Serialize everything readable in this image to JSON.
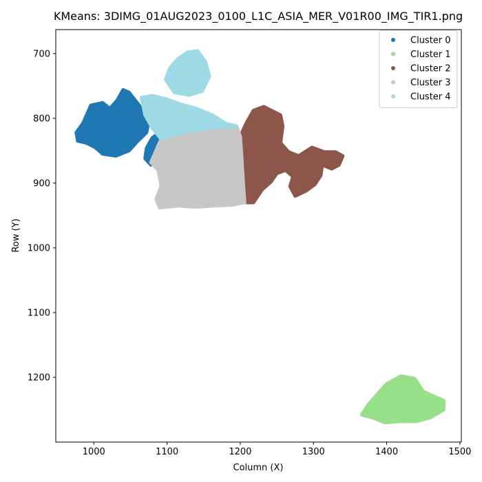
{
  "chart_data": {
    "type": "scatter",
    "title": "KMeans: 3DIMG_01AUG2023_0100_L1C_ASIA_MER_V01R00_IMG_TIR1.png",
    "xlabel": "Column (X)",
    "ylabel": "Row (Y)",
    "xlim": [
      948,
      1502
    ],
    "ylim": [
      1300,
      663
    ],
    "y_inverted": true,
    "x_ticks": [
      1000,
      1100,
      1200,
      1300,
      1400,
      1500
    ],
    "y_ticks": [
      700,
      800,
      900,
      1000,
      1100,
      1200
    ],
    "grid": false,
    "legend_position": "top-right",
    "series": [
      {
        "name": "Cluster 0",
        "color": "#1f77b4",
        "regions": [
          [
            [
              976,
              822
            ],
            [
              985,
              808
            ],
            [
              990,
              795
            ],
            [
              996,
              780
            ],
            [
              1012,
              776
            ],
            [
              1022,
              785
            ],
            [
              1032,
              772
            ],
            [
              1040,
              756
            ],
            [
              1048,
              760
            ],
            [
              1062,
              780
            ],
            [
              1075,
              805
            ],
            [
              1072,
              822
            ],
            [
              1060,
              835
            ],
            [
              1048,
              850
            ],
            [
              1030,
              858
            ],
            [
              1012,
              855
            ],
            [
              1002,
              845
            ],
            [
              990,
              838
            ],
            [
              978,
              835
            ]
          ],
          [
            [
              1072,
              846
            ],
            [
              1080,
              830
            ],
            [
              1090,
              822
            ],
            [
              1095,
              832
            ],
            [
              1085,
              855
            ],
            [
              1078,
              872
            ],
            [
              1070,
              862
            ]
          ]
        ]
      },
      {
        "name": "Cluster 1",
        "color": "#98df8a",
        "regions": [
          [
            [
              1366,
              1258
            ],
            [
              1375,
              1242
            ],
            [
              1388,
              1225
            ],
            [
              1400,
              1210
            ],
            [
              1420,
              1198
            ],
            [
              1438,
              1202
            ],
            [
              1450,
              1222
            ],
            [
              1462,
              1228
            ],
            [
              1478,
              1236
            ],
            [
              1478,
              1250
            ],
            [
              1460,
              1262
            ],
            [
              1440,
              1268
            ],
            [
              1418,
              1268
            ],
            [
              1398,
              1270
            ],
            [
              1380,
              1262
            ]
          ]
        ]
      },
      {
        "name": "Cluster 2",
        "color": "#8c564b",
        "regions": [
          [
            [
              1200,
              828
            ],
            [
              1208,
              808
            ],
            [
              1218,
              788
            ],
            [
              1232,
              782
            ],
            [
              1255,
              795
            ],
            [
              1258,
              812
            ],
            [
              1255,
              838
            ],
            [
              1266,
              852
            ],
            [
              1280,
              858
            ],
            [
              1298,
              845
            ],
            [
              1315,
              852
            ],
            [
              1330,
              852
            ],
            [
              1340,
              858
            ],
            [
              1335,
              872
            ],
            [
              1325,
              878
            ],
            [
              1312,
              872
            ],
            [
              1310,
              888
            ],
            [
              1302,
              902
            ],
            [
              1290,
              912
            ],
            [
              1275,
              920
            ],
            [
              1268,
              905
            ],
            [
              1272,
              890
            ],
            [
              1262,
              880
            ],
            [
              1250,
              885
            ],
            [
              1242,
              898
            ],
            [
              1230,
              910
            ],
            [
              1218,
              930
            ],
            [
              1208,
              930
            ],
            [
              1205,
              905
            ],
            [
              1204,
              870
            ],
            [
              1202,
              845
            ]
          ]
        ]
      },
      {
        "name": "Cluster 3",
        "color": "#c7c7c7",
        "regions": [
          [
            [
              1078,
              868
            ],
            [
              1092,
              832
            ],
            [
              1120,
              822
            ],
            [
              1160,
              815
            ],
            [
              1195,
              812
            ],
            [
              1200,
              828
            ],
            [
              1202,
              860
            ],
            [
              1204,
              900
            ],
            [
              1206,
              930
            ],
            [
              1188,
              934
            ],
            [
              1165,
              935
            ],
            [
              1140,
              937
            ],
            [
              1115,
              935
            ],
            [
              1090,
              938
            ],
            [
              1085,
              925
            ],
            [
              1092,
              905
            ],
            [
              1088,
              880
            ]
          ]
        ]
      },
      {
        "name": "Cluster 4",
        "color": "#9edae5",
        "regions": [
          [
            [
              1065,
              768
            ],
            [
              1080,
              765
            ],
            [
              1098,
              770
            ],
            [
              1118,
              778
            ],
            [
              1140,
              785
            ],
            [
              1162,
              795
            ],
            [
              1180,
              808
            ],
            [
              1195,
              812
            ],
            [
              1160,
              815
            ],
            [
              1120,
              822
            ],
            [
              1092,
              832
            ],
            [
              1080,
              815
            ],
            [
              1070,
              795
            ]
          ],
          [
            [
              1098,
              740
            ],
            [
              1104,
              722
            ],
            [
              1115,
              708
            ],
            [
              1128,
              698
            ],
            [
              1142,
              696
            ],
            [
              1152,
              712
            ],
            [
              1158,
              735
            ],
            [
              1148,
              758
            ],
            [
              1130,
              764
            ],
            [
              1110,
              760
            ]
          ]
        ]
      }
    ]
  }
}
